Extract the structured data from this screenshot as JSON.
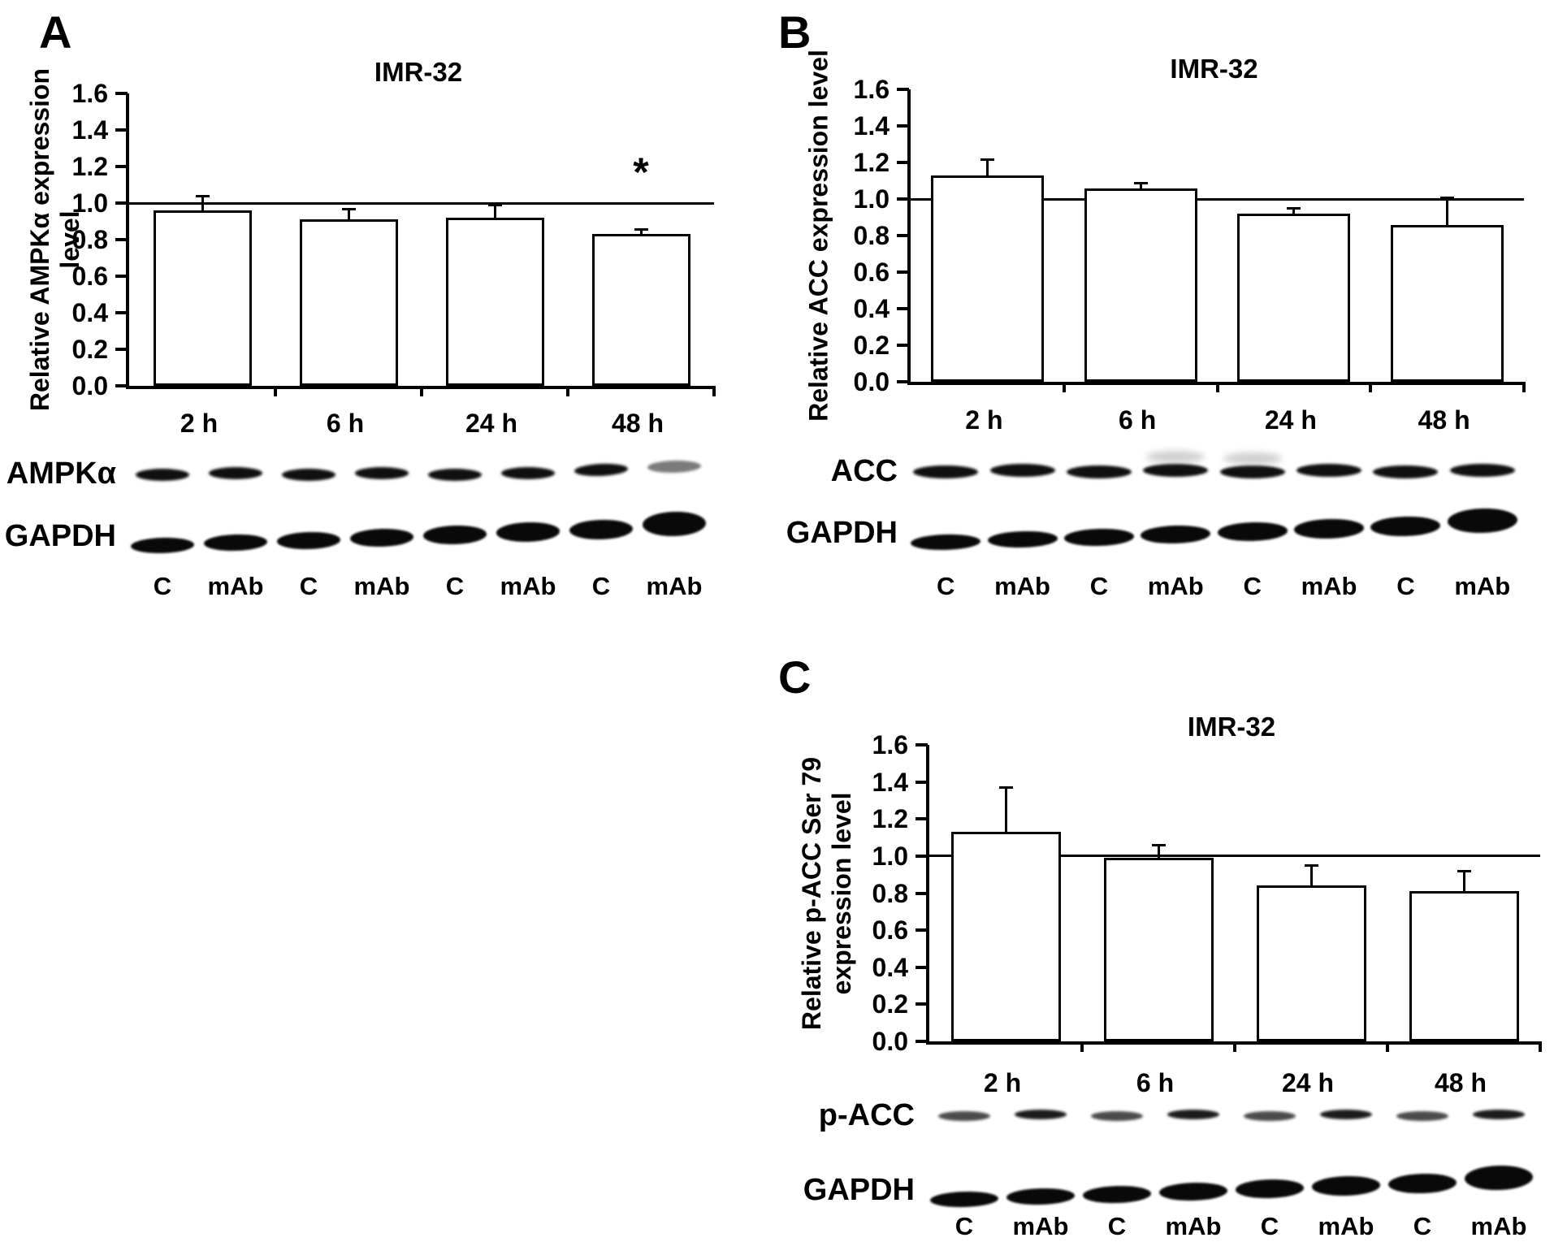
{
  "figure_title": "IMR-32 AMPK/ACC western blot quantification figure",
  "chart_data": [
    {
      "panel": "A",
      "type": "bar",
      "title": "IMR-32",
      "ylabel": "Relative AMPKα expression level",
      "ylabel_lines": [
        "Relative AMPKα expression",
        "level"
      ],
      "categories": [
        "2 h",
        "6 h",
        "24 h",
        "48 h"
      ],
      "values": [
        0.96,
        0.91,
        0.92,
        0.83
      ],
      "errors_upper": [
        0.08,
        0.06,
        0.07,
        0.03
      ],
      "significance": [
        "",
        "",
        "",
        "*"
      ],
      "ylim": [
        0.0,
        1.6
      ],
      "ytick_step": 0.2,
      "yticks": [
        "0.0",
        "0.2",
        "0.4",
        "0.6",
        "0.8",
        "1.0",
        "1.2",
        "1.4",
        "1.6"
      ],
      "reference_line": 1.0,
      "grid": "off",
      "bar_fill": "#ffffff",
      "bar_border": "#000000",
      "blot": {
        "rows": [
          {
            "label": "AMPKα"
          },
          {
            "label": "GAPDH"
          }
        ],
        "lane_labels": [
          "C",
          "mAb",
          "C",
          "mAb",
          "C",
          "mAb",
          "C",
          "mAb"
        ]
      }
    },
    {
      "panel": "B",
      "type": "bar",
      "title": "IMR-32",
      "ylabel": "Relative ACC expression level",
      "ylabel_lines": [
        "Relative ACC expression level"
      ],
      "categories": [
        "2 h",
        "6 h",
        "24 h",
        "48 h"
      ],
      "values": [
        1.13,
        1.06,
        0.92,
        0.86
      ],
      "errors_upper": [
        0.09,
        0.03,
        0.03,
        0.15
      ],
      "significance": [
        "",
        "",
        "",
        ""
      ],
      "ylim": [
        0.0,
        1.6
      ],
      "ytick_step": 0.2,
      "yticks": [
        "0.0",
        "0.2",
        "0.4",
        "0.6",
        "0.8",
        "1.0",
        "1.2",
        "1.4",
        "1.6"
      ],
      "reference_line": 1.0,
      "grid": "off",
      "bar_fill": "#ffffff",
      "bar_border": "#000000",
      "blot": {
        "rows": [
          {
            "label": "ACC"
          },
          {
            "label": "GAPDH"
          }
        ],
        "lane_labels": [
          "C",
          "mAb",
          "C",
          "mAb",
          "C",
          "mAb",
          "C",
          "mAb"
        ]
      }
    },
    {
      "panel": "C",
      "type": "bar",
      "title": "IMR-32",
      "ylabel": "Relative p-ACC Ser 79 expression level",
      "ylabel_lines": [
        "Relative p-ACC Ser 79",
        "expression level"
      ],
      "categories": [
        "2 h",
        "6 h",
        "24 h",
        "48 h"
      ],
      "values": [
        1.13,
        0.99,
        0.84,
        0.81
      ],
      "errors_upper": [
        0.24,
        0.07,
        0.11,
        0.11
      ],
      "significance": [
        "",
        "",
        "",
        ""
      ],
      "ylim": [
        0.0,
        1.6
      ],
      "ytick_step": 0.2,
      "yticks": [
        "0.0",
        "0.2",
        "0.4",
        "0.6",
        "0.8",
        "1.0",
        "1.2",
        "1.4",
        "1.6"
      ],
      "reference_line": 1.0,
      "grid": "off",
      "bar_fill": "#ffffff",
      "bar_border": "#000000",
      "blot": {
        "rows": [
          {
            "label": "p-ACC"
          },
          {
            "label": "GAPDH"
          }
        ],
        "lane_labels": [
          "C",
          "mAb",
          "C",
          "mAb",
          "C",
          "mAb",
          "C",
          "mAb"
        ]
      }
    }
  ]
}
